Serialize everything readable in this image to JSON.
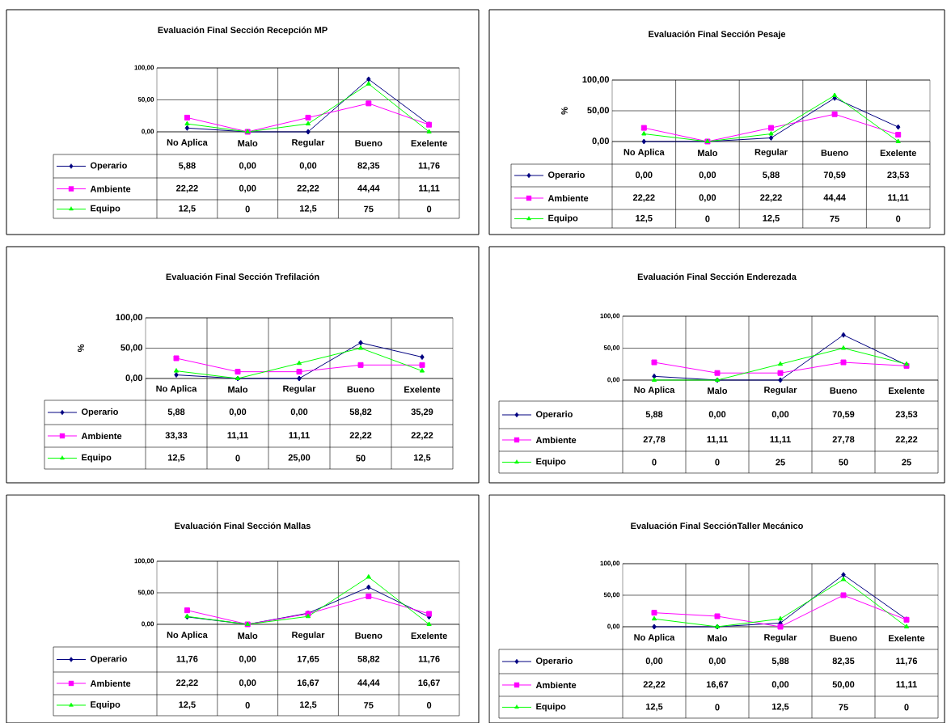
{
  "chart_data": [
    {
      "type": "line",
      "title": "Evaluación Final Sección Recepción MP",
      "categories": [
        "No Aplica",
        "Malo",
        "Regular",
        "Bueno",
        "Exelente"
      ],
      "ylim": [
        0,
        100
      ],
      "yticks": [
        {
          "value": 0,
          "label": "0,00"
        },
        {
          "value": 50,
          "label": "50,00"
        },
        {
          "value": 100,
          "label": "100,00"
        }
      ],
      "grid": true,
      "legend": "bottom left",
      "series": [
        {
          "name": "Operario",
          "color": "#000080",
          "marker": "diamond",
          "values": [
            5.88,
            0,
            0,
            82.35,
            11.76
          ],
          "value_labels": [
            "5,88",
            "0,00",
            "0,00",
            "82,35",
            "11,76"
          ]
        },
        {
          "name": "Ambiente",
          "color": "#ff00ff",
          "marker": "square",
          "values": [
            22.22,
            0,
            22.22,
            44.44,
            11.11
          ],
          "value_labels": [
            "22,22",
            "0,00",
            "22,22",
            "44,44",
            "11,11"
          ]
        },
        {
          "name": "Equipo",
          "color": "#00ff00",
          "marker": "triangle",
          "values": [
            12.5,
            0,
            12.5,
            75,
            0
          ],
          "value_labels": [
            "12,5",
            "0",
            "12,5",
            "75",
            "0"
          ]
        }
      ]
    },
    {
      "type": "line",
      "title": "Evaluación Final Sección Pesaje",
      "ylabel": "%",
      "categories": [
        "No Aplica",
        "Malo",
        "Regular",
        "Bueno",
        "Exelente"
      ],
      "ylim": [
        0,
        100
      ],
      "yticks": [
        {
          "value": 0,
          "label": "0,00"
        },
        {
          "value": 50,
          "label": "50,00"
        },
        {
          "value": 100,
          "label": "100,00"
        }
      ],
      "grid": true,
      "legend": "bottom left",
      "series": [
        {
          "name": "Operario",
          "color": "#000080",
          "marker": "diamond",
          "values": [
            0,
            0,
            5.88,
            70.59,
            23.53
          ],
          "value_labels": [
            "0,00",
            "0,00",
            "5,88",
            "70,59",
            "23,53"
          ]
        },
        {
          "name": "Ambiente",
          "color": "#ff00ff",
          "marker": "square",
          "values": [
            22.22,
            0,
            22.22,
            44.44,
            11.11
          ],
          "value_labels": [
            "22,22",
            "0,00",
            "22,22",
            "44,44",
            "11,11"
          ]
        },
        {
          "name": "Equipo",
          "color": "#00ff00",
          "marker": "triangle",
          "values": [
            12.5,
            0,
            12.5,
            75,
            0
          ],
          "value_labels": [
            "12,5",
            "0",
            "12,5",
            "75",
            "0"
          ]
        }
      ]
    },
    {
      "type": "line",
      "title": "Evaluación Final Sección Trefilación",
      "ylabel": "%",
      "categories": [
        "No Aplica",
        "Malo",
        "Regular",
        "Bueno",
        "Exelente"
      ],
      "ylim": [
        0,
        100
      ],
      "yticks": [
        {
          "value": 0,
          "label": "0,00"
        },
        {
          "value": 50,
          "label": "50,00"
        },
        {
          "value": 100,
          "label": "100,00"
        }
      ],
      "grid": true,
      "legend": "bottom left",
      "series": [
        {
          "name": "Operario",
          "color": "#000080",
          "marker": "diamond",
          "values": [
            5.88,
            0,
            0,
            58.82,
            35.29
          ],
          "value_labels": [
            "5,88",
            "0,00",
            "0,00",
            "58,82",
            "35,29"
          ]
        },
        {
          "name": "Ambiente",
          "color": "#ff00ff",
          "marker": "square",
          "values": [
            33.33,
            11.11,
            11.11,
            22.22,
            22.22
          ],
          "value_labels": [
            "33,33",
            "11,11",
            "11,11",
            "22,22",
            "22,22"
          ]
        },
        {
          "name": "Equipo",
          "color": "#00ff00",
          "marker": "triangle",
          "values": [
            12.5,
            0,
            25,
            50,
            12.5
          ],
          "value_labels": [
            "12,5",
            "0",
            "25,00",
            "50",
            "12,5"
          ]
        }
      ]
    },
    {
      "type": "line",
      "title": "Evaluación Final Sección Enderezada",
      "categories": [
        "No Aplica",
        "Malo",
        "Regular",
        "Bueno",
        "Exelente"
      ],
      "ylim": [
        0,
        100
      ],
      "yticks": [
        {
          "value": 0,
          "label": "0,00"
        },
        {
          "value": 50,
          "label": "50,00"
        },
        {
          "value": 100,
          "label": "100,00"
        }
      ],
      "grid": true,
      "legend": "bottom left",
      "series": [
        {
          "name": "Operario",
          "color": "#000080",
          "marker": "diamond",
          "values": [
            5.88,
            0,
            0,
            70.59,
            23.53
          ],
          "value_labels": [
            "5,88",
            "0,00",
            "0,00",
            "70,59",
            "23,53"
          ]
        },
        {
          "name": "Ambiente",
          "color": "#ff00ff",
          "marker": "square",
          "values": [
            27.78,
            11.11,
            11.11,
            27.78,
            22.22
          ],
          "value_labels": [
            "27,78",
            "11,11",
            "11,11",
            "27,78",
            "22,22"
          ]
        },
        {
          "name": "Equipo",
          "color": "#00ff00",
          "marker": "triangle",
          "values": [
            0,
            0,
            25,
            50,
            25
          ],
          "value_labels": [
            "0",
            "0",
            "25",
            "50",
            "25"
          ]
        }
      ]
    },
    {
      "type": "line",
      "title": "Evaluación Final Sección Mallas",
      "categories": [
        "No Aplica",
        "Malo",
        "Regular",
        "Bueno",
        "Exelente"
      ],
      "ylim": [
        0,
        100
      ],
      "yticks": [
        {
          "value": 0,
          "label": "0,00"
        },
        {
          "value": 50,
          "label": "50,00"
        },
        {
          "value": 100,
          "label": "100,00"
        }
      ],
      "grid": true,
      "legend": "bottom left",
      "series": [
        {
          "name": "Operario",
          "color": "#000080",
          "marker": "diamond",
          "values": [
            11.76,
            0,
            17.65,
            58.82,
            11.76
          ],
          "value_labels": [
            "11,76",
            "0,00",
            "17,65",
            "58,82",
            "11,76"
          ]
        },
        {
          "name": "Ambiente",
          "color": "#ff00ff",
          "marker": "square",
          "values": [
            22.22,
            0,
            16.67,
            44.44,
            16.67
          ],
          "value_labels": [
            "22,22",
            "0,00",
            "16,67",
            "44,44",
            "16,67"
          ]
        },
        {
          "name": "Equipo",
          "color": "#00ff00",
          "marker": "triangle",
          "values": [
            12.5,
            0,
            12.5,
            75,
            0
          ],
          "value_labels": [
            "12,5",
            "0",
            "12,5",
            "75",
            "0"
          ]
        }
      ]
    },
    {
      "type": "line",
      "title": "Evaluación Final SecciónTaller Mecánico",
      "categories": [
        "No Aplica",
        "Malo",
        "Regular",
        "Bueno",
        "Exelente"
      ],
      "ylim": [
        0,
        100
      ],
      "yticks": [
        {
          "value": 0,
          "label": "0,00"
        },
        {
          "value": 50,
          "label": "50,00"
        },
        {
          "value": 100,
          "label": "100,00"
        }
      ],
      "grid": true,
      "legend": "bottom left",
      "series": [
        {
          "name": "Operario",
          "color": "#000080",
          "marker": "diamond",
          "values": [
            0,
            0,
            5.88,
            82.35,
            11.76
          ],
          "value_labels": [
            "0,00",
            "0,00",
            "5,88",
            "82,35",
            "11,76"
          ]
        },
        {
          "name": "Ambiente",
          "color": "#ff00ff",
          "marker": "square",
          "values": [
            22.22,
            16.67,
            0,
            50,
            11.11
          ],
          "value_labels": [
            "22,22",
            "16,67",
            "0,00",
            "50,00",
            "11,11"
          ]
        },
        {
          "name": "Equipo",
          "color": "#00ff00",
          "marker": "triangle",
          "values": [
            12.5,
            0,
            12.5,
            75,
            0
          ],
          "value_labels": [
            "12,5",
            "0",
            "12,5",
            "75",
            "0"
          ]
        }
      ]
    }
  ]
}
